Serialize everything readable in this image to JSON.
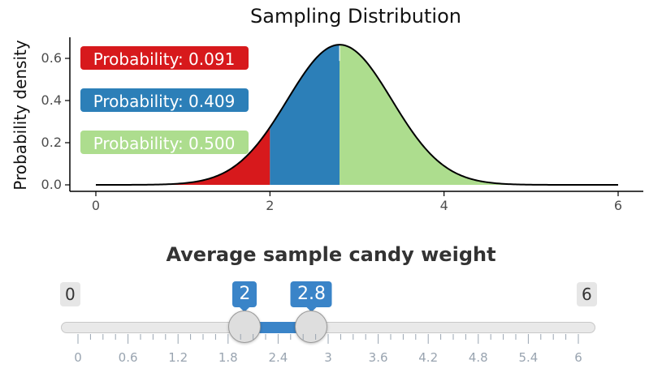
{
  "chart_data": {
    "type": "area",
    "title": "Sampling Distribution",
    "xlabel": "",
    "ylabel": "Probability density",
    "xlim": [
      0,
      6
    ],
    "ylim": [
      0,
      0.7
    ],
    "x_ticks": [
      0,
      2,
      4,
      6
    ],
    "y_ticks": [
      0.0,
      0.2,
      0.4,
      0.6
    ],
    "distribution": {
      "family": "normal",
      "mean": 2.8,
      "sd": 0.6
    },
    "regions": [
      {
        "from": 0,
        "to": 2,
        "color": "#d7191c",
        "label": "Probability: 0.091",
        "probability": 0.091
      },
      {
        "from": 2,
        "to": 2.8,
        "color": "#2c7fb8",
        "label": "Probability: 0.409",
        "probability": 0.409
      },
      {
        "from": 2.8,
        "to": 6,
        "color": "#addd8e",
        "label": "Probability: 0.500",
        "probability": 0.5
      }
    ],
    "grid": false,
    "legend": "none"
  },
  "slider": {
    "title": "Average sample candy weight",
    "min": 0,
    "max": 6,
    "min_label": "0",
    "max_label": "6",
    "from": 2,
    "to": 2.8,
    "from_label": "2",
    "to_label": "2.8",
    "step_labels": [
      "0",
      "0.6",
      "1.2",
      "1.8",
      "2.4",
      "3",
      "3.6",
      "4.2",
      "4.8",
      "5.4",
      "6"
    ],
    "colors": {
      "accent": "#3a84c8",
      "track": "#e9e9e9",
      "handle": "#dedede",
      "tick": "#99a4b0"
    }
  }
}
